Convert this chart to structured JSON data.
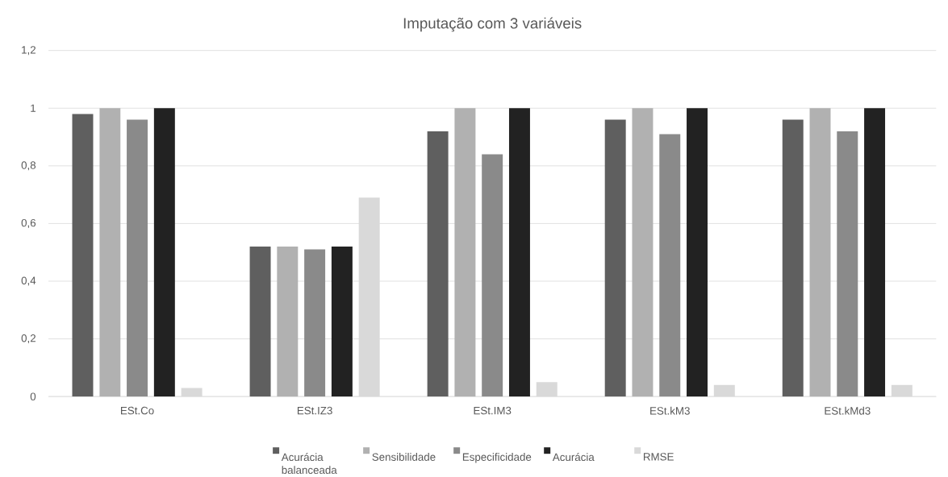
{
  "chart_data": {
    "type": "bar",
    "title": "Imputação com 3 variáveis",
    "categories": [
      "ESt.Co",
      "ESt.IZ3",
      "ESt.IM3",
      "ESt.kM3",
      "ESt.kMd3"
    ],
    "series": [
      {
        "name": "Acurácia balanceada",
        "color": "#5f5f5f",
        "values": [
          0.98,
          0.52,
          0.92,
          0.96,
          0.96
        ]
      },
      {
        "name": "Sensibilidade",
        "color": "#b1b1b1",
        "values": [
          1,
          0.52,
          1,
          1,
          1
        ]
      },
      {
        "name": "Especificidade",
        "color": "#8a8a8a",
        "values": [
          0.96,
          0.51,
          0.84,
          0.91,
          0.92
        ]
      },
      {
        "name": "Acurácia",
        "color": "#222222",
        "values": [
          1,
          0.52,
          1,
          1,
          1
        ]
      },
      {
        "name": "RMSE",
        "color": "#d9d9d9",
        "values": [
          0.03,
          0.69,
          0.05,
          0.04,
          0.04
        ]
      }
    ],
    "ylim": [
      0,
      1.2
    ],
    "yticks": [
      0,
      {
        "value": 0.2,
        "label": "0,2"
      },
      {
        "value": 0.4,
        "label": "0,4"
      },
      {
        "value": 0.6,
        "label": "0,6"
      },
      {
        "value": 0.8,
        "label": "0,8"
      },
      1,
      {
        "value": 1.2,
        "label": "1,2"
      }
    ],
    "grid": "y",
    "legend": "bottom"
  }
}
